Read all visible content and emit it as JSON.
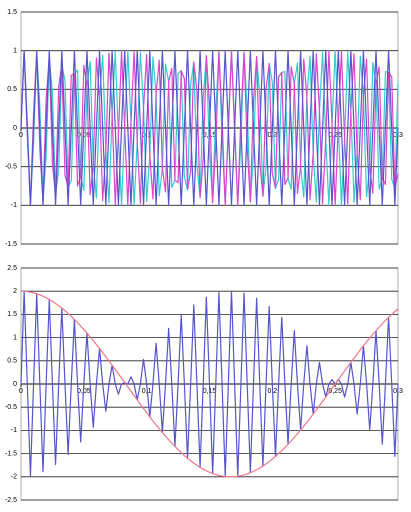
{
  "chart_data": [
    {
      "type": "line",
      "grid": true,
      "xlim": [
        0,
        0.3
      ],
      "xticks": [
        {
          "value": 0,
          "label": "0"
        },
        {
          "value": 0.05,
          "label": "0,05"
        },
        {
          "value": 0.1,
          "label": "0,1"
        },
        {
          "value": 0.15,
          "label": "0,15"
        },
        {
          "value": 0.2,
          "label": "0,2"
        },
        {
          "value": 0.25,
          "label": "0,25"
        },
        {
          "value": 0.3,
          "label": "0,3"
        }
      ],
      "ylim": [
        -1.5,
        1.5
      ],
      "yticks": [
        -1.5,
        -1,
        -0.5,
        0,
        0.5,
        1,
        1.5
      ],
      "x": [
        0,
        0.0025,
        0.005,
        0.0075,
        0.01,
        0.0125,
        0.015,
        0.0175,
        0.02,
        0.0225,
        0.025,
        0.0275,
        0.03,
        0.0325,
        0.035,
        0.0375,
        0.04,
        0.0425,
        0.045,
        0.0475,
        0.05,
        0.0525,
        0.055,
        0.0575,
        0.06,
        0.0625,
        0.065,
        0.0675,
        0.07,
        0.0725,
        0.075,
        0.0775,
        0.08,
        0.0825,
        0.085,
        0.0875,
        0.09,
        0.0925,
        0.095,
        0.0975,
        0.1,
        0.1025,
        0.105,
        0.1075,
        0.11,
        0.1125,
        0.115,
        0.1175,
        0.12,
        0.1225,
        0.125,
        0.1275,
        0.13,
        0.1325,
        0.135,
        0.1375,
        0.14,
        0.1425,
        0.145,
        0.1475,
        0.15,
        0.1525,
        0.155,
        0.1575,
        0.16,
        0.1625,
        0.165,
        0.1675,
        0.17,
        0.1725,
        0.175,
        0.1775,
        0.18,
        0.1825,
        0.185,
        0.1875,
        0.19,
        0.1925,
        0.195,
        0.1975,
        0.2,
        0.2025,
        0.205,
        0.2075,
        0.21,
        0.2125,
        0.215,
        0.2175,
        0.22,
        0.2225,
        0.225,
        0.2275,
        0.23,
        0.2325,
        0.235,
        0.2375,
        0.24,
        0.2425,
        0.245,
        0.2475,
        0.25,
        0.2525,
        0.255,
        0.2575,
        0.26,
        0.2625,
        0.265,
        0.2675,
        0.27,
        0.2725,
        0.275,
        0.2775,
        0.28,
        0.2825,
        0.285,
        0.2875,
        0.29,
        0.2925,
        0.295,
        0.2975,
        0.3
      ],
      "series": [
        {
          "color": "#33cccc",
          "values": [
            0,
            0.999,
            0.094,
            -0.99,
            -0.187,
            0.972,
            0.279,
            -0.946,
            -0.368,
            0.911,
            0.454,
            -0.869,
            -0.536,
            0.818,
            0.613,
            -0.76,
            -0.685,
            0.696,
            0.75,
            -0.625,
            -0.809,
            0.549,
            0.861,
            -0.468,
            -0.905,
            0.383,
            0.941,
            -0.294,
            -0.969,
            0.203,
            0.988,
            -0.11,
            -0.998,
            0.016,
            1,
            0.078,
            -0.992,
            -0.172,
            0.976,
            0.264,
            -0.951,
            -0.354,
            0.918,
            0.44,
            -0.876,
            -0.522,
            0.827,
            0.6,
            -0.771,
            -0.673,
            0.707,
            0.74,
            -0.637,
            -0.8,
            0.562,
            0.853,
            -0.482,
            -0.898,
            0.397,
            0.935,
            -0.309,
            -0.965,
            0.218,
            0.985,
            -0.125,
            -0.997,
            0.031,
            1,
            0.063,
            -0.994,
            -0.156,
            0.979,
            0.249,
            -0.956,
            -0.339,
            0.924,
            0.426,
            -0.884,
            -0.509,
            0.836,
            0.588,
            -0.78,
            -0.661,
            0.718,
            0.729,
            -0.649,
            -0.79,
            0.575,
            0.844,
            -0.495,
            -0.891,
            0.412,
            0.93,
            -0.324,
            -0.96,
            0.233,
            0.982,
            -0.141,
            -0.996,
            0.047,
            1,
            0.047,
            -0.996,
            -0.141,
            0.982,
            0.233,
            -0.96,
            -0.324,
            0.93,
            0.412,
            -0.891,
            -0.495,
            0.844,
            0.575,
            -0.79,
            -0.649,
            0.729,
            0.718,
            -0.661,
            -0.78,
            0.588
          ]
        },
        {
          "color": "#dd44cc",
          "values": [
            0,
            0.999,
            -0.094,
            -0.99,
            0.187,
            0.972,
            -0.279,
            -0.946,
            0.368,
            0.911,
            -0.454,
            -0.869,
            0.536,
            0.818,
            -0.613,
            -0.76,
            0.685,
            0.696,
            -0.75,
            -0.625,
            0.809,
            0.549,
            -0.861,
            -0.468,
            0.905,
            0.383,
            -0.941,
            -0.294,
            0.969,
            0.203,
            -0.988,
            -0.11,
            0.998,
            0.016,
            -1,
            0.078,
            0.992,
            -0.172,
            -0.976,
            0.264,
            0.951,
            -0.354,
            -0.918,
            0.44,
            0.876,
            -0.522,
            -0.827,
            0.6,
            0.771,
            -0.673,
            -0.707,
            0.74,
            0.637,
            -0.8,
            -0.562,
            0.853,
            0.482,
            -0.898,
            -0.397,
            0.935,
            0.309,
            -0.965,
            -0.218,
            0.985,
            0.125,
            -0.997,
            -0.031,
            1,
            -0.063,
            -0.994,
            0.156,
            0.979,
            -0.249,
            -0.956,
            0.339,
            0.924,
            -0.426,
            -0.884,
            0.509,
            0.836,
            -0.588,
            -0.78,
            0.661,
            0.718,
            -0.729,
            -0.649,
            0.79,
            0.575,
            -0.844,
            -0.495,
            0.891,
            0.412,
            -0.93,
            -0.324,
            0.96,
            0.233,
            -0.982,
            -0.141,
            0.996,
            0.047,
            -1,
            0.047,
            0.996,
            -0.141,
            -0.982,
            0.233,
            0.96,
            -0.324,
            -0.93,
            0.412,
            0.891,
            -0.495,
            -0.844,
            0.575,
            0.79,
            -0.649,
            -0.729,
            0.718,
            0.661,
            -0.78,
            -0.588
          ]
        },
        {
          "color": "#5555cc",
          "values": [
            0,
            1,
            0,
            -1,
            0,
            1,
            0,
            -1,
            0,
            1,
            0,
            -1,
            0,
            1,
            0,
            -1,
            0,
            1,
            0,
            -1,
            0,
            1,
            0,
            -1,
            0,
            1,
            0,
            -1,
            0,
            1,
            0,
            -1,
            0,
            1,
            0,
            -1,
            0,
            1,
            0,
            -1,
            0,
            1,
            0,
            -1,
            0,
            1,
            0,
            -1,
            0,
            1,
            0,
            -1,
            0,
            1,
            0,
            -1,
            0,
            1,
            0,
            -1,
            0,
            1,
            0,
            -1,
            0,
            1,
            0,
            -1,
            0,
            1,
            0,
            -1,
            0,
            1,
            0,
            -1,
            0,
            1,
            0,
            -1,
            0,
            1,
            0,
            -1,
            0,
            1,
            0,
            -1,
            0,
            1,
            0,
            -1,
            0,
            1,
            0,
            -1,
            0,
            1,
            0,
            -1,
            0,
            1,
            0,
            -1,
            0,
            1,
            0,
            -1,
            0,
            1,
            0,
            -1,
            0,
            1,
            0,
            -1,
            0,
            1,
            0,
            -1,
            0
          ]
        }
      ]
    },
    {
      "type": "line",
      "grid": true,
      "xlim": [
        0,
        0.3
      ],
      "xticks": [
        {
          "value": 0,
          "label": "0"
        },
        {
          "value": 0.05,
          "label": "0,05"
        },
        {
          "value": 0.1,
          "label": "0,1"
        },
        {
          "value": 0.15,
          "label": "0,15"
        },
        {
          "value": 0.2,
          "label": "0,2"
        },
        {
          "value": 0.25,
          "label": "0,25"
        },
        {
          "value": 0.3,
          "label": "0,3"
        }
      ],
      "ylim": [
        -2.5,
        2.5
      ],
      "yticks": [
        -2.5,
        -2,
        -1.5,
        -1,
        -0.5,
        0,
        0.5,
        1,
        1.5,
        2,
        2.5
      ],
      "x": [
        0,
        0.0025,
        0.005,
        0.0075,
        0.01,
        0.0125,
        0.015,
        0.0175,
        0.02,
        0.0225,
        0.025,
        0.0275,
        0.03,
        0.0325,
        0.035,
        0.0375,
        0.04,
        0.0425,
        0.045,
        0.0475,
        0.05,
        0.0525,
        0.055,
        0.0575,
        0.06,
        0.0625,
        0.065,
        0.0675,
        0.07,
        0.0725,
        0.075,
        0.0775,
        0.08,
        0.0825,
        0.085,
        0.0875,
        0.09,
        0.0925,
        0.095,
        0.0975,
        0.1,
        0.1025,
        0.105,
        0.1075,
        0.11,
        0.1125,
        0.115,
        0.1175,
        0.12,
        0.1225,
        0.125,
        0.1275,
        0.13,
        0.1325,
        0.135,
        0.1375,
        0.14,
        0.1425,
        0.145,
        0.1475,
        0.15,
        0.1525,
        0.155,
        0.1575,
        0.16,
        0.1625,
        0.165,
        0.1675,
        0.17,
        0.1725,
        0.175,
        0.1775,
        0.18,
        0.1825,
        0.185,
        0.1875,
        0.19,
        0.1925,
        0.195,
        0.1975,
        0.2,
        0.2025,
        0.205,
        0.2075,
        0.21,
        0.2125,
        0.215,
        0.2175,
        0.22,
        0.2225,
        0.225,
        0.2275,
        0.23,
        0.2325,
        0.235,
        0.2375,
        0.24,
        0.2425,
        0.245,
        0.2475,
        0.25,
        0.2525,
        0.255,
        0.2575,
        0.26,
        0.2625,
        0.265,
        0.2675,
        0.27,
        0.2725,
        0.275,
        0.2775,
        0.28,
        0.2825,
        0.285,
        0.2875,
        0.29,
        0.2925,
        0.295,
        0.2975,
        0.3
      ],
      "series": [
        {
          "color": "#5555cc",
          "values": [
            0,
            1.998,
            0,
            -1.98,
            0,
            1.944,
            0,
            -1.892,
            0,
            1.822,
            0,
            -1.738,
            0,
            1.636,
            0,
            -1.52,
            0,
            1.392,
            0,
            -1.25,
            0,
            1.098,
            0,
            -0.936,
            0,
            0.766,
            0,
            -0.588,
            0,
            0.406,
            0,
            -0.22,
            0,
            0.032,
            0,
            0.156,
            0,
            -0.344,
            0,
            0.528,
            0,
            -0.708,
            0,
            0.88,
            0,
            -1.044,
            0,
            1.2,
            0,
            -1.346,
            0,
            1.48,
            0,
            -1.6,
            0,
            1.706,
            0,
            -1.796,
            0,
            1.87,
            0,
            -1.93,
            0,
            1.97,
            0,
            -1.994,
            0,
            2,
            0,
            -1.988,
            0,
            1.958,
            0,
            -1.912,
            0,
            1.848,
            0,
            -1.768,
            0,
            1.672,
            0,
            -1.56,
            0,
            1.436,
            0,
            -1.298,
            0,
            1.15,
            0,
            -0.99,
            0,
            0.824,
            0,
            -0.648,
            0,
            0.466,
            0,
            -0.282,
            0,
            0.094,
            0,
            0.094,
            0,
            -0.282,
            0,
            0.466,
            0,
            -0.648,
            0,
            0.824,
            0,
            -0.99,
            0,
            1.15,
            0,
            -1.298,
            0,
            1.436,
            0,
            -1.56,
            0
          ]
        },
        {
          "color": "#ee7788",
          "values": [
            2,
            1.998,
            1.992,
            1.98,
            1.964,
            1.944,
            1.92,
            1.892,
            1.86,
            1.822,
            1.782,
            1.738,
            1.688,
            1.636,
            1.58,
            1.52,
            1.458,
            1.392,
            1.322,
            1.25,
            1.176,
            1.098,
            1.018,
            0.936,
            0.852,
            0.766,
            0.678,
            0.588,
            0.498,
            0.406,
            0.312,
            0.22,
            0.126,
            0.032,
            -0.062,
            -0.156,
            -0.25,
            -0.344,
            -0.436,
            -0.528,
            -0.618,
            -0.708,
            -0.794,
            -0.88,
            -0.964,
            -1.044,
            -1.124,
            -1.2,
            -1.274,
            -1.346,
            -1.414,
            -1.48,
            -1.542,
            -1.6,
            -1.654,
            -1.706,
            -1.752,
            -1.796,
            -1.836,
            -1.87,
            -1.902,
            -1.93,
            -1.952,
            -1.97,
            -1.984,
            -1.994,
            -2,
            -2,
            -1.996,
            -1.988,
            -1.976,
            -1.958,
            -1.938,
            -1.912,
            -1.882,
            -1.848,
            -1.81,
            -1.768,
            -1.722,
            -1.672,
            -1.618,
            -1.56,
            -1.5,
            -1.436,
            -1.37,
            -1.298,
            -1.226,
            -1.15,
            -1.072,
            -0.99,
            -0.908,
            -0.824,
            -0.736,
            -0.648,
            -0.558,
            -0.466,
            -0.374,
            -0.282,
            -0.188,
            -0.094,
            0,
            0.094,
            0.188,
            0.282,
            0.374,
            0.466,
            0.558,
            0.648,
            0.736,
            0.824,
            0.908,
            0.99,
            1.072,
            1.15,
            1.226,
            1.298,
            1.37,
            1.436,
            1.5,
            1.56,
            1.618
          ]
        }
      ]
    }
  ]
}
